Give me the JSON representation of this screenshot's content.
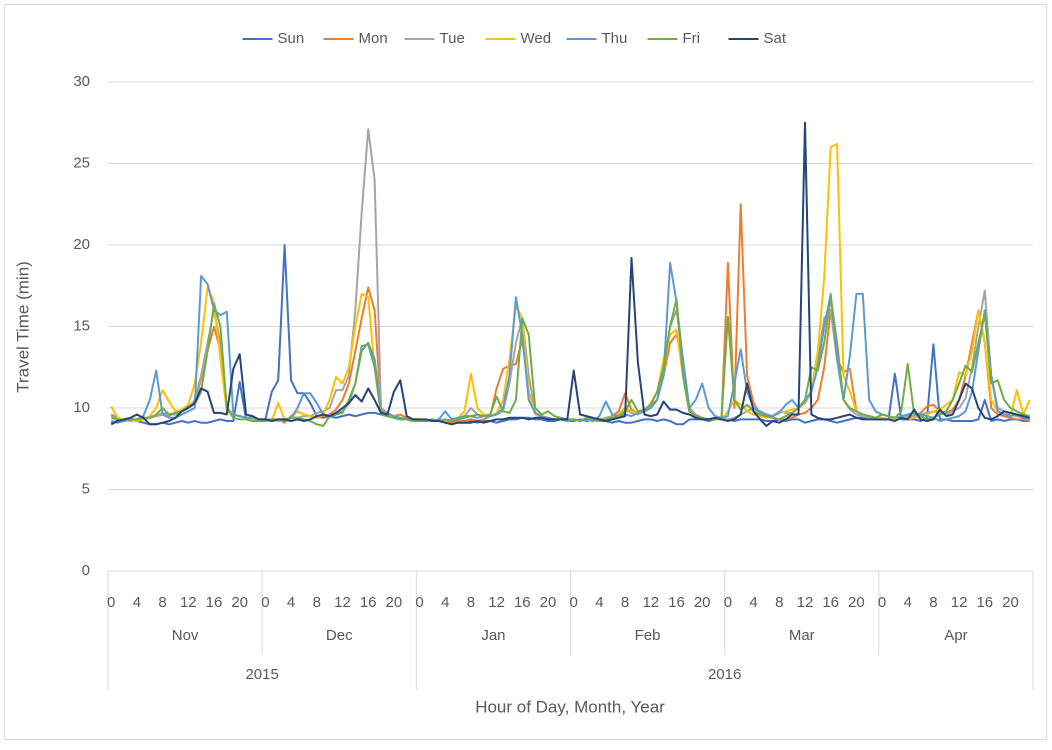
{
  "chart_data": {
    "type": "line",
    "y_label": "Travel Time (min)",
    "x_label": "Hour of Day, Month, Year",
    "hours": [
      0,
      null,
      null,
      null,
      4,
      null,
      null,
      null,
      8,
      null,
      null,
      null,
      12,
      null,
      null,
      null,
      16,
      null,
      null,
      null,
      20,
      null,
      null,
      null
    ],
    "groups": [
      {
        "year": "2015",
        "months": [
          "Nov",
          "Dec"
        ]
      },
      {
        "year": "2016",
        "months": [
          "Jan",
          "Feb",
          "Mar",
          "Apr"
        ]
      }
    ],
    "ylim": [
      0,
      30
    ],
    "yticks": [
      0,
      5,
      10,
      15,
      20,
      25,
      30
    ],
    "grid": true,
    "legend": "top",
    "series": [
      {
        "name": "Sun",
        "color": "#4472c4",
        "values": [
          9.1,
          9.2,
          9.2,
          9.3,
          9.2,
          9.1,
          9.0,
          9.0,
          9.1,
          9.0,
          9.1,
          9.2,
          9.1,
          9.2,
          9.1,
          9.1,
          9.2,
          9.3,
          9.2,
          9.2,
          11.6,
          9.3,
          9.3,
          9.2,
          9.3,
          11.0,
          11.7,
          20.0,
          11.7,
          10.9,
          10.9,
          10.3,
          9.5,
          9.4,
          9.5,
          9.4,
          9.5,
          9.6,
          9.5,
          9.6,
          9.7,
          9.7,
          9.6,
          9.5,
          9.4,
          9.3,
          9.3,
          9.2,
          9.2,
          9.2,
          9.3,
          9.2,
          9.2,
          9.3,
          9.2,
          9.1,
          9.2,
          9.1,
          9.2,
          9.2,
          9.1,
          9.2,
          9.3,
          9.3,
          9.4,
          9.4,
          9.3,
          9.3,
          9.2,
          9.2,
          9.3,
          9.2,
          9.2,
          9.3,
          9.2,
          9.3,
          9.2,
          9.2,
          9.1,
          9.2,
          9.1,
          9.1,
          9.2,
          9.3,
          9.3,
          9.2,
          9.3,
          9.2,
          9.0,
          9.0,
          9.3,
          9.3,
          9.3,
          9.2,
          9.3,
          9.3,
          9.3,
          9.2,
          9.3,
          9.3,
          9.3,
          9.3,
          9.2,
          9.2,
          9.3,
          9.2,
          9.3,
          9.3,
          9.1,
          9.2,
          9.3,
          9.3,
          9.2,
          9.1,
          9.2,
          9.3,
          9.4,
          9.4,
          9.4,
          9.3,
          9.3,
          9.3,
          12.1,
          9.3,
          9.3,
          9.3,
          9.2,
          9.4,
          13.9,
          9.3,
          9.3,
          9.2,
          9.2,
          9.2,
          9.2,
          9.3,
          10.5,
          9.2,
          9.3,
          9.2,
          9.3,
          9.3,
          9.2,
          9.2
        ]
      },
      {
        "name": "Mon",
        "color": "#ed7d31",
        "values": [
          9.6,
          9.4,
          9.2,
          9.3,
          9.2,
          9.3,
          9.4,
          9.5,
          9.6,
          9.5,
          9.7,
          9.9,
          10.0,
          10.3,
          11.8,
          13.5,
          15.0,
          13.5,
          10.0,
          9.6,
          9.5,
          9.4,
          9.4,
          9.3,
          9.3,
          9.2,
          9.3,
          9.1,
          9.5,
          9.8,
          9.6,
          9.5,
          9.4,
          9.5,
          9.6,
          9.9,
          10.5,
          11.5,
          13.5,
          15.5,
          17.4,
          16.0,
          10.0,
          9.7,
          9.5,
          9.6,
          9.4,
          9.3,
          9.3,
          9.2,
          9.2,
          9.3,
          9.2,
          9.1,
          9.2,
          9.2,
          9.3,
          9.2,
          9.3,
          9.5,
          11.2,
          12.4,
          12.6,
          12.7,
          14.2,
          11.0,
          9.7,
          9.4,
          9.4,
          9.3,
          9.3,
          9.2,
          9.3,
          9.2,
          9.3,
          9.2,
          9.2,
          9.4,
          9.5,
          9.8,
          10.9,
          9.9,
          9.7,
          9.8,
          10.2,
          10.5,
          12.0,
          14.0,
          14.5,
          13.0,
          10.0,
          9.5,
          9.3,
          9.3,
          9.4,
          9.3,
          18.9,
          10.0,
          22.5,
          12.0,
          10.3,
          9.6,
          9.5,
          9.4,
          9.3,
          9.3,
          9.4,
          9.6,
          9.7,
          10.0,
          10.5,
          12.5,
          16.0,
          13.0,
          12.2,
          12.4,
          9.8,
          9.6,
          9.5,
          9.4,
          9.4,
          9.3,
          9.3,
          9.4,
          9.4,
          9.5,
          9.7,
          10.1,
          10.2,
          9.8,
          9.7,
          9.9,
          10.5,
          12.0,
          14.0,
          16.0,
          14.0,
          10.0,
          9.6,
          9.5,
          9.4,
          9.3,
          9.3,
          9.2
        ]
      },
      {
        "name": "Tue",
        "color": "#a5a5a5",
        "values": [
          9.5,
          9.3,
          9.3,
          9.2,
          9.3,
          9.4,
          9.4,
          9.5,
          9.7,
          9.6,
          9.6,
          9.8,
          10.0,
          10.5,
          12.0,
          14.0,
          16.0,
          14.0,
          10.0,
          9.6,
          9.5,
          9.4,
          9.4,
          9.3,
          9.3,
          9.3,
          9.2,
          9.3,
          9.4,
          9.4,
          9.5,
          9.5,
          9.7,
          9.8,
          10.0,
          11.1,
          11.1,
          12.0,
          16.0,
          22.0,
          27.1,
          24.0,
          10.0,
          9.6,
          9.5,
          9.4,
          9.3,
          9.3,
          9.3,
          9.2,
          9.2,
          9.3,
          9.2,
          9.3,
          9.4,
          9.5,
          10.0,
          9.6,
          9.5,
          9.5,
          9.6,
          9.8,
          11.5,
          14.0,
          15.5,
          12.0,
          9.7,
          9.5,
          9.4,
          9.3,
          9.3,
          9.2,
          9.3,
          9.2,
          9.3,
          9.3,
          9.3,
          9.4,
          9.5,
          9.6,
          9.9,
          9.7,
          9.6,
          9.8,
          10.0,
          10.5,
          12.5,
          15.0,
          16.0,
          13.0,
          10.0,
          9.6,
          9.4,
          9.3,
          9.3,
          9.3,
          9.3,
          9.4,
          9.6,
          9.8,
          10.0,
          9.7,
          9.6,
          9.5,
          9.8,
          9.7,
          9.7,
          10.0,
          10.3,
          11.0,
          13.0,
          15.5,
          16.0,
          13.0,
          10.5,
          9.9,
          9.6,
          9.5,
          9.4,
          9.3,
          9.3,
          9.3,
          9.4,
          9.4,
          9.5,
          9.5,
          9.6,
          9.7,
          9.8,
          9.7,
          9.6,
          9.8,
          10.0,
          10.6,
          12.5,
          15.0,
          17.2,
          12.0,
          10.0,
          9.8,
          9.6,
          9.5,
          9.4,
          9.3
        ]
      },
      {
        "name": "Wed",
        "color": "#ffc000",
        "values": [
          10.1,
          9.4,
          9.2,
          9.3,
          9.2,
          9.3,
          9.5,
          10.0,
          11.1,
          10.4,
          9.8,
          9.9,
          10.2,
          11.5,
          14.0,
          17.4,
          16.5,
          13.0,
          9.8,
          9.6,
          9.5,
          9.4,
          9.3,
          9.3,
          9.3,
          9.2,
          10.3,
          9.3,
          9.4,
          9.8,
          9.6,
          9.5,
          9.4,
          9.6,
          10.5,
          11.9,
          11.5,
          12.5,
          15.0,
          17.0,
          16.8,
          12.5,
          9.8,
          9.6,
          9.5,
          9.4,
          9.3,
          9.3,
          9.3,
          9.2,
          9.2,
          9.3,
          9.2,
          9.3,
          9.4,
          9.8,
          12.1,
          10.0,
          9.6,
          9.5,
          9.7,
          10.5,
          13.0,
          16.3,
          15.5,
          11.0,
          9.6,
          9.5,
          9.4,
          9.3,
          9.3,
          9.2,
          9.3,
          9.2,
          9.3,
          9.2,
          9.2,
          9.3,
          9.4,
          9.6,
          10.0,
          9.8,
          9.7,
          9.8,
          10.3,
          11.0,
          13.0,
          14.5,
          14.8,
          12.0,
          9.8,
          9.5,
          9.4,
          9.3,
          9.3,
          9.3,
          9.8,
          10.5,
          10.2,
          9.8,
          9.6,
          9.5,
          9.4,
          9.5,
          9.7,
          9.8,
          9.9,
          10.0,
          10.5,
          11.0,
          13.5,
          18.0,
          26.0,
          26.2,
          12.0,
          11.0,
          9.8,
          9.6,
          9.5,
          9.4,
          9.4,
          9.3,
          9.3,
          9.4,
          9.3,
          9.4,
          9.5,
          9.6,
          9.8,
          9.9,
          10.2,
          10.5,
          12.2,
          12.0,
          13.5,
          16.0,
          14.0,
          10.5,
          9.8,
          9.6,
          9.5,
          11.1,
          9.6,
          10.5
        ]
      },
      {
        "name": "Thu",
        "color": "#5b9bd5",
        "values": [
          9.2,
          9.1,
          9.2,
          9.3,
          9.3,
          9.5,
          10.5,
          12.3,
          9.6,
          9.4,
          9.4,
          9.6,
          9.8,
          10.0,
          18.1,
          17.6,
          16.0,
          15.7,
          15.9,
          9.6,
          9.5,
          9.4,
          9.4,
          9.3,
          9.3,
          9.2,
          9.3,
          9.3,
          9.4,
          10.0,
          10.9,
          10.9,
          10.3,
          9.6,
          9.5,
          9.6,
          9.8,
          10.3,
          11.5,
          13.5,
          14.0,
          13.0,
          9.8,
          9.6,
          9.5,
          9.4,
          9.3,
          9.3,
          9.2,
          9.3,
          9.2,
          9.3,
          9.8,
          9.3,
          9.4,
          9.5,
          9.5,
          9.4,
          9.5,
          9.5,
          9.6,
          10.0,
          12.0,
          16.8,
          14.5,
          10.5,
          9.7,
          9.5,
          9.4,
          9.3,
          9.3,
          9.2,
          9.3,
          9.2,
          9.3,
          9.2,
          9.5,
          10.4,
          9.6,
          9.5,
          9.6,
          9.5,
          9.7,
          9.8,
          10.0,
          10.5,
          12.0,
          18.9,
          16.5,
          13.0,
          10.0,
          10.5,
          11.5,
          10.0,
          9.5,
          9.4,
          9.5,
          11.5,
          13.6,
          11.0,
          10.0,
          9.8,
          9.6,
          9.5,
          9.7,
          10.2,
          10.5,
          10.0,
          10.5,
          11.0,
          12.5,
          15.0,
          17.0,
          13.0,
          10.5,
          13.2,
          17.0,
          17.0,
          10.5,
          9.8,
          9.6,
          9.5,
          9.4,
          9.5,
          9.6,
          9.7,
          9.6,
          9.5,
          9.4,
          9.2,
          9.3,
          9.4,
          9.5,
          9.8,
          11.0,
          13.5,
          16.0,
          12.0,
          9.8,
          9.6,
          9.5,
          9.6,
          9.4,
          9.3
        ]
      },
      {
        "name": "Fri",
        "color": "#70ad47",
        "values": [
          9.4,
          9.3,
          9.2,
          9.3,
          9.3,
          9.4,
          9.4,
          9.6,
          10.0,
          9.6,
          9.7,
          9.8,
          10.1,
          10.2,
          11.0,
          13.5,
          16.4,
          15.0,
          10.0,
          9.4,
          9.3,
          9.3,
          9.2,
          9.2,
          9.2,
          9.3,
          9.3,
          9.2,
          9.4,
          9.4,
          9.3,
          9.2,
          9.0,
          8.9,
          9.5,
          9.6,
          9.7,
          10.5,
          11.5,
          13.8,
          13.9,
          12.5,
          9.6,
          9.5,
          9.4,
          9.3,
          9.3,
          9.2,
          9.2,
          9.2,
          9.3,
          9.2,
          9.3,
          9.2,
          9.3,
          9.4,
          9.5,
          9.6,
          9.5,
          9.6,
          10.7,
          9.8,
          9.7,
          10.5,
          15.5,
          14.5,
          10.0,
          9.6,
          9.8,
          9.5,
          9.4,
          9.3,
          9.3,
          9.2,
          9.4,
          9.3,
          9.2,
          9.3,
          9.4,
          9.5,
          9.8,
          10.5,
          9.8,
          9.9,
          10.2,
          11.0,
          12.5,
          15.0,
          16.7,
          12.0,
          9.8,
          9.5,
          9.4,
          9.3,
          9.3,
          9.4,
          15.6,
          10.5,
          9.9,
          10.2,
          9.8,
          9.6,
          9.5,
          9.4,
          9.3,
          9.5,
          9.7,
          10.0,
          10.5,
          12.5,
          12.3,
          14.0,
          16.8,
          14.0,
          10.5,
          10.0,
          9.8,
          9.6,
          9.5,
          9.4,
          9.6,
          9.5,
          9.4,
          9.8,
          12.7,
          9.6,
          9.5,
          9.3,
          9.4,
          9.6,
          9.8,
          10.5,
          11.5,
          12.6,
          12.2,
          14.0,
          15.8,
          11.5,
          11.7,
          10.5,
          10.0,
          9.8,
          9.6,
          9.5
        ]
      },
      {
        "name": "Sat",
        "color": "#264478",
        "values": [
          9.0,
          9.2,
          9.3,
          9.4,
          9.6,
          9.4,
          9.0,
          9.0,
          9.1,
          9.2,
          9.4,
          9.8,
          10.0,
          10.3,
          11.2,
          11.0,
          9.7,
          9.7,
          9.6,
          12.4,
          13.3,
          9.6,
          9.5,
          9.3,
          9.3,
          9.2,
          9.3,
          9.3,
          9.2,
          9.3,
          9.2,
          9.3,
          9.5,
          9.6,
          9.5,
          9.7,
          10.0,
          10.3,
          10.8,
          10.4,
          11.2,
          10.5,
          9.7,
          9.6,
          11.0,
          11.7,
          9.5,
          9.3,
          9.3,
          9.3,
          9.2,
          9.2,
          9.1,
          9.0,
          9.1,
          9.1,
          9.1,
          9.2,
          9.1,
          9.2,
          9.3,
          9.3,
          9.4,
          9.4,
          9.4,
          9.3,
          9.4,
          9.4,
          9.3,
          9.3,
          9.3,
          9.3,
          12.3,
          9.6,
          9.5,
          9.4,
          9.3,
          9.2,
          9.3,
          9.4,
          9.5,
          19.2,
          12.8,
          9.6,
          9.5,
          9.6,
          10.4,
          9.9,
          9.9,
          9.7,
          9.6,
          9.4,
          9.3,
          9.3,
          9.4,
          9.3,
          9.2,
          9.3,
          9.6,
          11.5,
          9.8,
          9.3,
          8.9,
          9.2,
          9.1,
          9.3,
          9.6,
          9.6,
          27.5,
          9.6,
          9.4,
          9.3,
          9.3,
          9.4,
          9.5,
          9.6,
          9.4,
          9.3,
          9.3,
          9.3,
          9.3,
          9.3,
          9.2,
          9.4,
          9.3,
          9.9,
          9.3,
          9.2,
          9.3,
          9.9,
          9.5,
          9.6,
          10.5,
          11.5,
          11.2,
          10.0,
          9.4,
          9.3,
          9.5,
          9.8,
          9.7,
          9.6,
          9.5,
          9.4
        ]
      }
    ]
  }
}
